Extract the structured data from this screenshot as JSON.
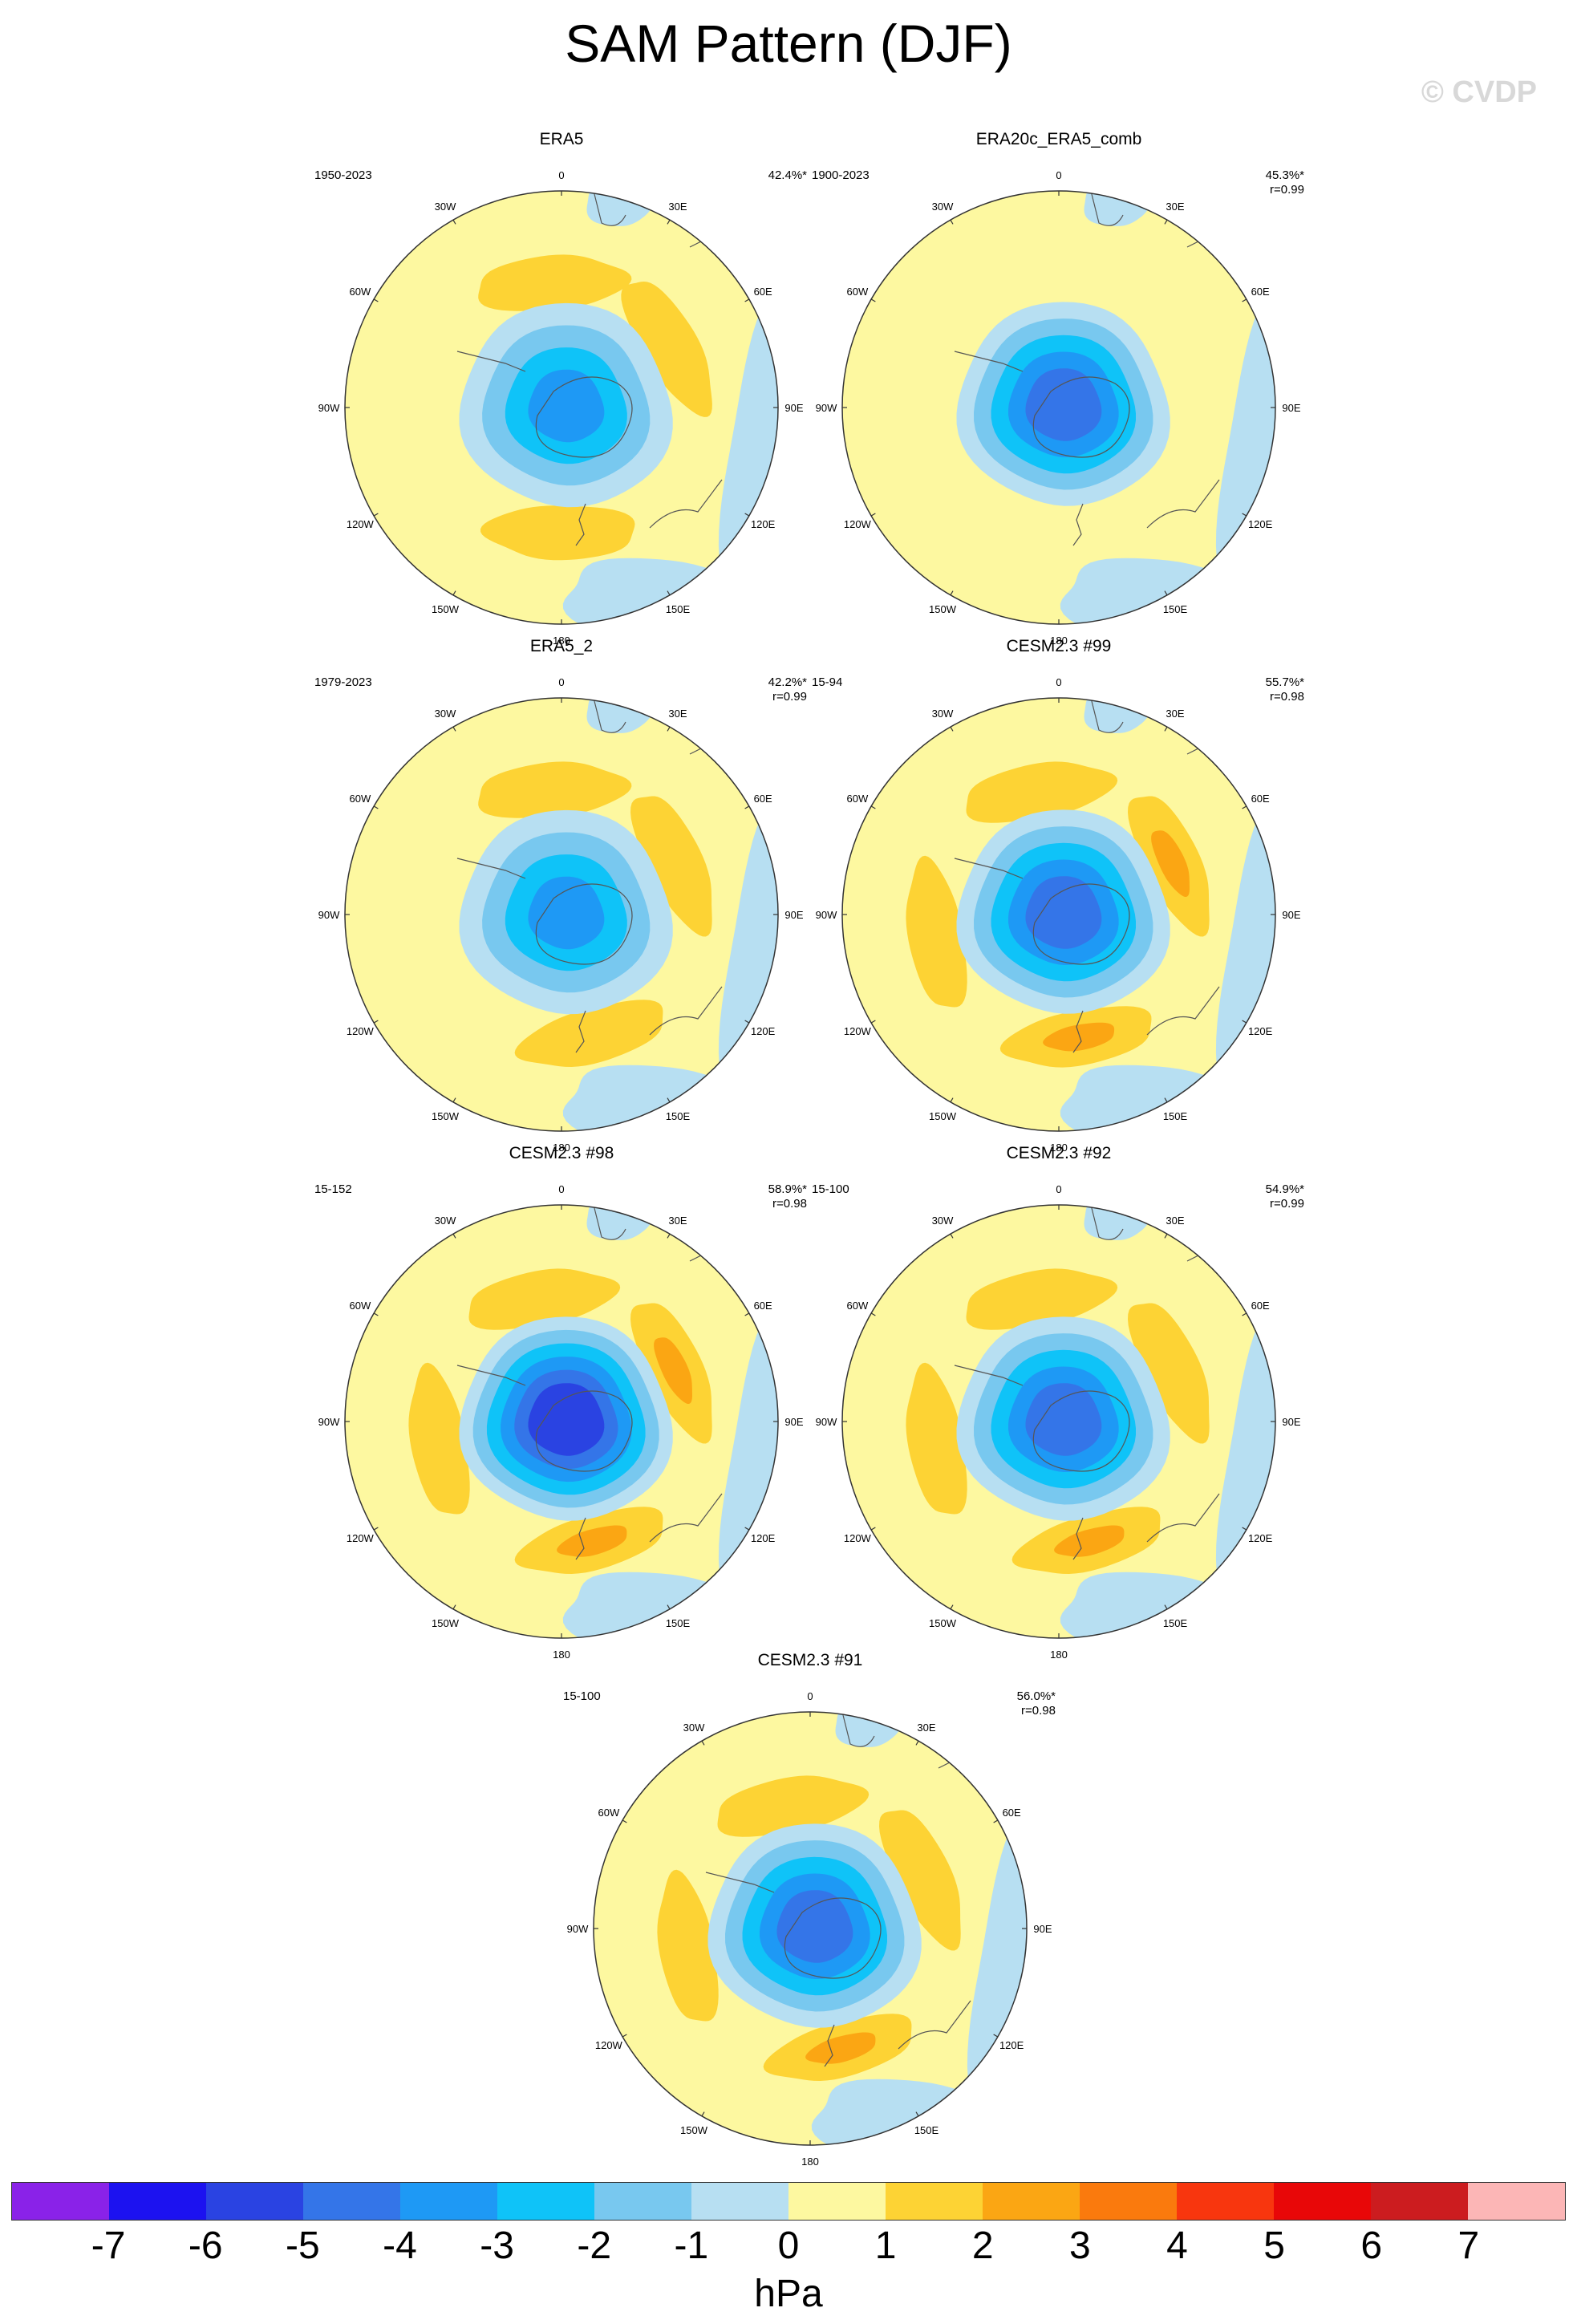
{
  "title": "SAM Pattern (DJF)",
  "credit": "© CVDP",
  "chart_data": {
    "type": "heatmap",
    "projection": "south-polar-stereographic",
    "variable": "SAM regression pattern",
    "units": "hPa",
    "colorbar": {
      "levels": [
        "-7",
        "-6",
        "-5",
        "-4",
        "-3",
        "-2",
        "-1",
        "0",
        "1",
        "2",
        "3",
        "4",
        "5",
        "6",
        "7"
      ],
      "colors": [
        "#8a22e8",
        "#1c12f0",
        "#2a43e2",
        "#3475e8",
        "#1e99f5",
        "#0fc3f8",
        "#78c8ef",
        "#b7dff2",
        "#fdf8a0",
        "#fdd334",
        "#fba613",
        "#fa7a0d",
        "#f8360e",
        "#e80708",
        "#cc1c1f",
        "#fcb6b6"
      ]
    },
    "longitude_labels": [
      "0",
      "30E",
      "60E",
      "90E",
      "120E",
      "150E",
      "180",
      "150W",
      "120W",
      "90W",
      "60W",
      "30W"
    ],
    "panels": [
      {
        "name": "ERA5",
        "period": "1950-2023",
        "pct": "42.4%*",
        "r": "",
        "min_level": -4,
        "pos_max": 1,
        "pos_lobes": [
          [
            -5,
            1
          ],
          [
            60,
            1
          ],
          [
            180,
            1
          ]
        ],
        "bias": [
          0.35,
          0.25
        ]
      },
      {
        "name": "ERA20c_ERA5_comb",
        "period": "1900-2023",
        "pct": "45.3%*",
        "r": "r=0.99",
        "min_level": -5,
        "pos_max": 0,
        "pos_lobes": [],
        "bias": [
          0.5,
          0.1
        ]
      },
      {
        "name": "ERA5_2",
        "period": "1979-2023",
        "pct": "42.2%*",
        "r": "r=0.99",
        "min_level": -4,
        "pos_max": 1,
        "pos_lobes": [
          [
            -5,
            1
          ],
          [
            65,
            1
          ],
          [
            165,
            1
          ]
        ],
        "bias": [
          0.35,
          0.25
        ]
      },
      {
        "name": "CESM2.3 #99",
        "period": "15-94",
        "pct": "55.7%*",
        "r": "r=0.98",
        "min_level": -5,
        "pos_max": 2,
        "pos_lobes": [
          [
            -10,
            1
          ],
          [
            65,
            2
          ],
          [
            170,
            2
          ],
          [
            -100,
            1
          ]
        ],
        "bias": [
          0.35,
          0.2
        ]
      },
      {
        "name": "CESM2.3 #98",
        "period": "15-152",
        "pct": "58.9%*",
        "r": "r=0.98",
        "min_level": -6,
        "pos_max": 2,
        "pos_lobes": [
          [
            -10,
            1
          ],
          [
            65,
            2
          ],
          [
            165,
            2
          ],
          [
            -100,
            1
          ]
        ],
        "bias": [
          0.4,
          0.2
        ]
      },
      {
        "name": "CESM2.3 #92",
        "period": "15-100",
        "pct": "54.9%*",
        "r": "r=0.99",
        "min_level": -5,
        "pos_max": 2,
        "pos_lobes": [
          [
            -10,
            1
          ],
          [
            65,
            1
          ],
          [
            165,
            2
          ],
          [
            -100,
            1
          ]
        ],
        "bias": [
          0.35,
          0.2
        ]
      },
      {
        "name": "CESM2.3 #91",
        "period": "15-100",
        "pct": "56.0%*",
        "r": "r=0.98",
        "min_level": -5,
        "pos_max": 2,
        "pos_lobes": [
          [
            -10,
            1
          ],
          [
            65,
            1
          ],
          [
            165,
            2
          ],
          [
            -100,
            1
          ]
        ],
        "bias": [
          0.35,
          0.2
        ]
      }
    ]
  }
}
